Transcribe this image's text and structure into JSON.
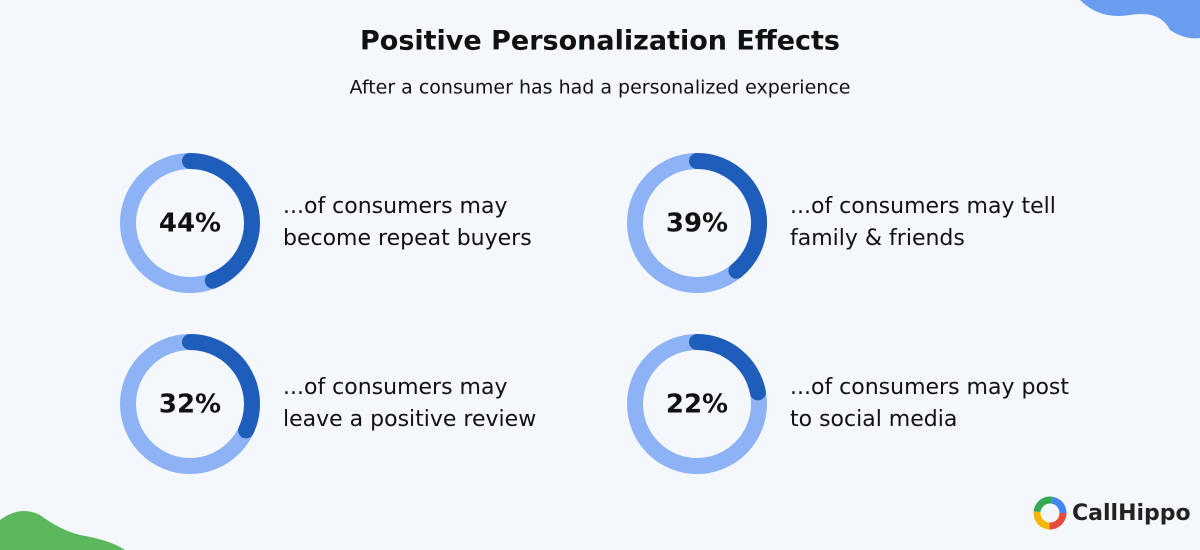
{
  "title": "Positive Personalization Effects",
  "subtitle": "After a consumer has had a personalized experience",
  "brand": "CallHippo",
  "chart_data": [
    {
      "type": "donut",
      "values": [
        44
      ],
      "value_labels": [
        "44%"
      ],
      "ylim": [
        0,
        100
      ],
      "color": "#1f5dbb",
      "track_color": "#8db2f6",
      "description": [
        "...of consumers may",
        "become repeat buyers"
      ]
    },
    {
      "type": "donut",
      "values": [
        39
      ],
      "value_labels": [
        "39%"
      ],
      "ylim": [
        0,
        100
      ],
      "color": "#1f5dbb",
      "track_color": "#8db2f6",
      "description": [
        "...of consumers may tell",
        "family & friends"
      ]
    },
    {
      "type": "donut",
      "values": [
        32
      ],
      "value_labels": [
        "32%"
      ],
      "ylim": [
        0,
        100
      ],
      "color": "#1f5dbb",
      "track_color": "#8db2f6",
      "description": [
        "...of consumers may",
        "leave a positive review"
      ]
    },
    {
      "type": "donut",
      "values": [
        22
      ],
      "value_labels": [
        "22%"
      ],
      "ylim": [
        0,
        100
      ],
      "color": "#1f5dbb",
      "track_color": "#8db2f6",
      "description": [
        "...of consumers may post",
        "to social media"
      ]
    }
  ]
}
